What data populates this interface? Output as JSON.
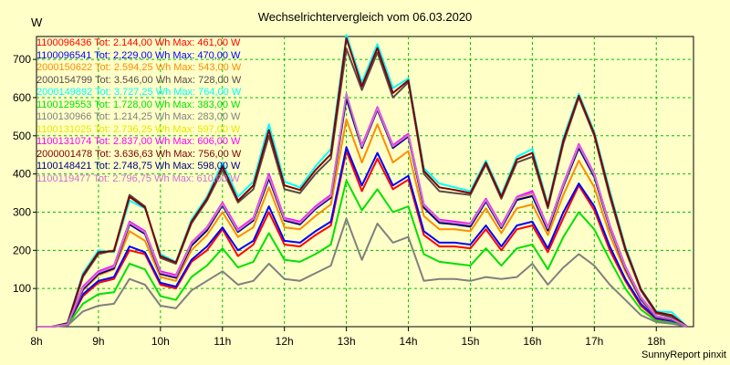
{
  "chart_data": {
    "type": "line",
    "title": "Wechselrichtervergleich vom 06.03.2020",
    "ylabel": "W",
    "xlabel": "",
    "credit": "SunnyReport pinxit",
    "x_ticks": [
      "8h",
      "9h",
      "10h",
      "11h",
      "12h",
      "13h",
      "14h",
      "15h",
      "16h",
      "17h",
      "18h"
    ],
    "y_ticks": [
      100,
      200,
      300,
      400,
      500,
      600,
      700
    ],
    "ylim": [
      0,
      760
    ],
    "xlim": [
      8.0,
      18.6
    ],
    "grid": true,
    "legend_position": "top-left",
    "x": [
      8.0,
      8.25,
      8.5,
      8.75,
      9.0,
      9.25,
      9.5,
      9.75,
      10.0,
      10.25,
      10.5,
      10.75,
      11.0,
      11.25,
      11.5,
      11.75,
      12.0,
      12.25,
      12.5,
      12.75,
      13.0,
      13.25,
      13.5,
      13.75,
      14.0,
      14.25,
      14.5,
      14.75,
      15.0,
      15.25,
      15.5,
      15.75,
      16.0,
      16.25,
      16.5,
      16.75,
      17.0,
      17.25,
      17.5,
      17.75,
      18.0,
      18.25,
      18.5
    ],
    "series": [
      {
        "name": "1100096436 Tot: 2.144,00 Wh Max: 461,00 W",
        "color": "#ff0000",
        "values": [
          0,
          0,
          5,
          80,
          115,
          125,
          200,
          190,
          110,
          100,
          170,
          200,
          255,
          185,
          215,
          300,
          215,
          210,
          240,
          265,
          460,
          355,
          440,
          360,
          385,
          240,
          210,
          210,
          205,
          255,
          200,
          255,
          265,
          195,
          285,
          370,
          305,
          200,
          120,
          55,
          20,
          15,
          0
        ]
      },
      {
        "name": "1100096541 Tot: 2.229,00 Wh Max: 470,00 W",
        "color": "#0000ff",
        "values": [
          0,
          0,
          5,
          85,
          120,
          130,
          210,
          195,
          115,
          105,
          175,
          210,
          260,
          200,
          225,
          315,
          225,
          220,
          250,
          275,
          470,
          370,
          455,
          370,
          395,
          250,
          220,
          220,
          215,
          265,
          210,
          265,
          275,
          205,
          300,
          375,
          315,
          210,
          125,
          60,
          22,
          15,
          0
        ]
      },
      {
        "name": "2000150622 Tot: 2.594,25 Wh Max: 543,00 W",
        "color": "#ff8c00",
        "values": [
          0,
          0,
          6,
          95,
          135,
          150,
          250,
          225,
          130,
          120,
          200,
          240,
          300,
          235,
          260,
          365,
          260,
          255,
          290,
          320,
          543,
          430,
          530,
          430,
          460,
          290,
          255,
          255,
          250,
          310,
          245,
          310,
          320,
          240,
          345,
          435,
          365,
          240,
          145,
          70,
          25,
          18,
          0
        ]
      },
      {
        "name": "2000154799 Tot: 3.546,00 Wh Max: 728,00 W",
        "color": "#5a4a4a",
        "values": [
          0,
          0,
          8,
          130,
          190,
          200,
          345,
          315,
          180,
          165,
          270,
          330,
          410,
          325,
          360,
          500,
          360,
          350,
          400,
          440,
          728,
          620,
          718,
          600,
          640,
          400,
          355,
          350,
          345,
          425,
          335,
          430,
          445,
          310,
          480,
          600,
          500,
          340,
          200,
          95,
          35,
          25,
          0
        ]
      },
      {
        "name": "2000149892 Tot: 3.727,25 Wh Max: 764,00 W",
        "color": "#00ffff",
        "values": [
          0,
          0,
          10,
          140,
          200,
          195,
          330,
          310,
          190,
          170,
          280,
          340,
          430,
          340,
          380,
          530,
          380,
          365,
          420,
          465,
          764,
          640,
          740,
          625,
          650,
          415,
          375,
          365,
          355,
          435,
          345,
          445,
          465,
          320,
          495,
          610,
          510,
          355,
          210,
          100,
          40,
          38,
          0
        ]
      },
      {
        "name": "1100129553 Tot: 1.728,00 Wh Max: 383,00 W",
        "color": "#00e000",
        "values": [
          0,
          0,
          4,
          60,
          85,
          90,
          165,
          150,
          80,
          70,
          130,
          160,
          205,
          155,
          170,
          245,
          175,
          170,
          190,
          215,
          383,
          305,
          360,
          300,
          315,
          190,
          170,
          165,
          160,
          205,
          160,
          205,
          215,
          150,
          235,
          300,
          255,
          175,
          100,
          45,
          15,
          10,
          0
        ]
      },
      {
        "name": "1100130966 Tot: 1.214,25 Wh Max: 283,00 W",
        "color": "#808080",
        "values": [
          0,
          0,
          3,
          40,
          55,
          60,
          125,
          110,
          55,
          48,
          95,
          120,
          145,
          110,
          120,
          165,
          125,
          120,
          140,
          160,
          283,
          175,
          270,
          220,
          235,
          120,
          125,
          125,
          120,
          130,
          125,
          130,
          165,
          110,
          155,
          190,
          160,
          110,
          70,
          30,
          12,
          8,
          0
        ]
      },
      {
        "name": "1100131025 Tot: 2.736,25 Wh Max: 597,00 W",
        "color": "#e8e800",
        "values": [
          0,
          0,
          6,
          100,
          140,
          155,
          270,
          245,
          140,
          130,
          215,
          255,
          320,
          250,
          280,
          390,
          280,
          270,
          310,
          340,
          597,
          470,
          570,
          470,
          500,
          315,
          275,
          270,
          265,
          330,
          260,
          335,
          345,
          255,
          370,
          470,
          395,
          260,
          155,
          75,
          27,
          20,
          0
        ]
      },
      {
        "name": "1100131074 Tot: 2.837,00 Wh Max: 606,00 W",
        "color": "#ff00ff",
        "values": [
          0,
          0,
          6,
          105,
          145,
          160,
          275,
          250,
          145,
          135,
          220,
          260,
          325,
          255,
          285,
          400,
          285,
          275,
          315,
          345,
          606,
          475,
          575,
          475,
          505,
          320,
          280,
          275,
          270,
          335,
          265,
          340,
          355,
          260,
          375,
          478,
          400,
          265,
          158,
          77,
          28,
          20,
          0
        ]
      },
      {
        "name": "2000001478 Tot: 3.636,63 Wh Max: 756,00 W",
        "color": "#800000",
        "values": [
          0,
          0,
          9,
          135,
          195,
          198,
          340,
          312,
          185,
          168,
          275,
          335,
          420,
          330,
          370,
          515,
          370,
          358,
          410,
          452,
          756,
          630,
          730,
          612,
          645,
          408,
          365,
          358,
          350,
          430,
          340,
          438,
          455,
          315,
          488,
          605,
          505,
          348,
          205,
          98,
          38,
          30,
          0
        ]
      },
      {
        "name": "1100148421 Tot: 2.748,75 Wh Max: 598,00 W",
        "color": "#000080",
        "values": [
          0,
          0,
          6,
          98,
          138,
          153,
          268,
          243,
          138,
          128,
          212,
          252,
          318,
          248,
          278,
          388,
          278,
          268,
          308,
          338,
          598,
          468,
          568,
          468,
          498,
          312,
          272,
          268,
          262,
          328,
          258,
          332,
          342,
          252,
          368,
          468,
          392,
          258,
          152,
          72,
          26,
          19,
          0
        ]
      },
      {
        "name": "1100119477 Tot: 2.796,75 Wh Max: 610,00 W",
        "color": "#d070d0",
        "values": [
          0,
          0,
          6,
          102,
          142,
          157,
          272,
          247,
          142,
          132,
          218,
          258,
          322,
          252,
          282,
          395,
          282,
          272,
          312,
          342,
          610,
          472,
          572,
          472,
          502,
          318,
          278,
          272,
          268,
          332,
          262,
          338,
          350,
          258,
          372,
          475,
          398,
          262,
          155,
          75,
          27,
          20,
          0
        ]
      }
    ]
  }
}
